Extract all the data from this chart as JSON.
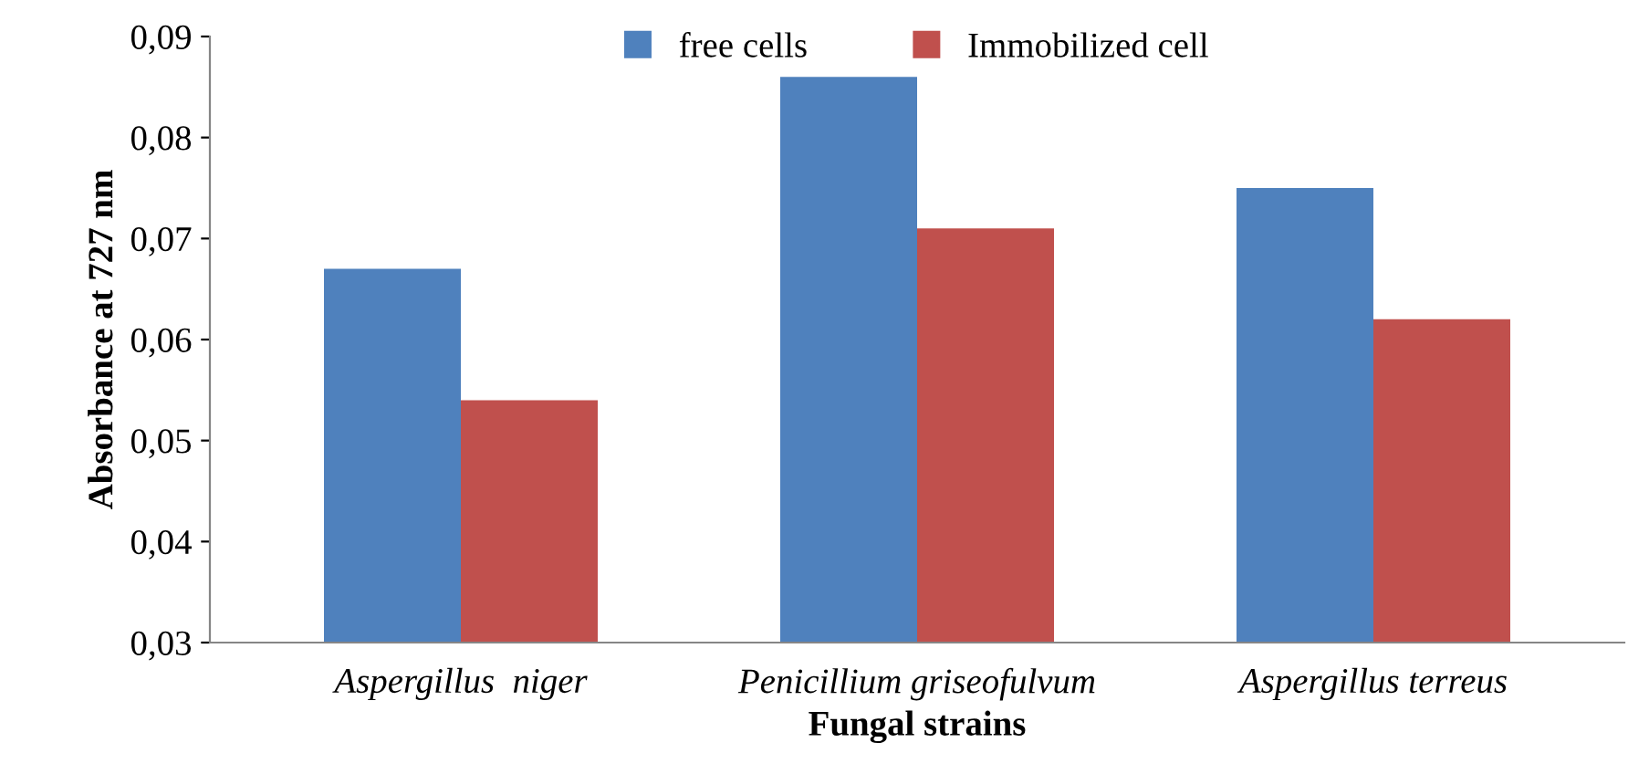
{
  "chart_data": {
    "type": "bar",
    "xlabel": "Fungal strains",
    "ylabel": "Absorbance at 727 nm",
    "categories": [
      "Aspergillus  niger",
      "Penicillium griseofulvum",
      "Aspergillus terreus"
    ],
    "series": [
      {
        "name": "free cells",
        "color": "#4f81bd",
        "values": [
          0.067,
          0.086,
          0.075
        ]
      },
      {
        "name": "Immobilized cell",
        "color": "#c0504d",
        "values": [
          0.054,
          0.071,
          0.062
        ]
      }
    ],
    "ylim": [
      0.03,
      0.09
    ],
    "yticks": [
      {
        "value": 0.03,
        "label": "0,03"
      },
      {
        "value": 0.04,
        "label": "0,04"
      },
      {
        "value": 0.05,
        "label": "0,05"
      },
      {
        "value": 0.06,
        "label": "0,06"
      },
      {
        "value": 0.07,
        "label": "0,07"
      },
      {
        "value": 0.08,
        "label": "0,08"
      },
      {
        "value": 0.09,
        "label": "0,09"
      }
    ],
    "grid": false,
    "legend": "top"
  }
}
